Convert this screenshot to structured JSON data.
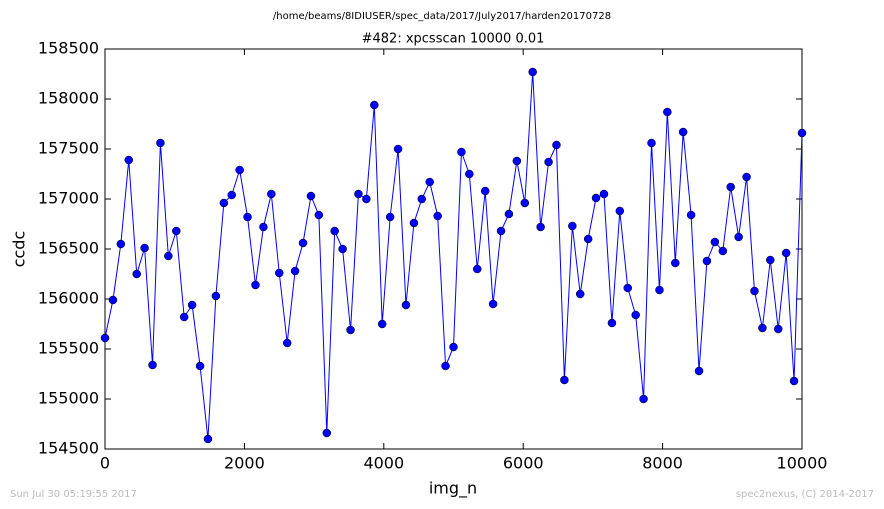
{
  "chart_data": {
    "type": "line",
    "suptitle": "/home/beams/8IDIUSER/spec_data/2017/July2017/harden20170728",
    "title": "#482: xpcsscan 10000 0.01",
    "xlabel": "img_n",
    "ylabel": "ccdc",
    "x": [
      0,
      114,
      227,
      341,
      455,
      568,
      682,
      795,
      909,
      1023,
      1136,
      1250,
      1364,
      1477,
      1591,
      1705,
      1818,
      1932,
      2045,
      2159,
      2273,
      2386,
      2500,
      2614,
      2727,
      2841,
      2955,
      3068,
      3182,
      3295,
      3409,
      3523,
      3636,
      3750,
      3864,
      3977,
      4091,
      4205,
      4318,
      4432,
      4545,
      4659,
      4773,
      4886,
      5000,
      5114,
      5227,
      5341,
      5455,
      5568,
      5682,
      5795,
      5909,
      6023,
      6136,
      6250,
      6364,
      6477,
      6591,
      6705,
      6818,
      6932,
      7045,
      7159,
      7273,
      7386,
      7500,
      7614,
      7727,
      7841,
      7955,
      8068,
      8182,
      8295,
      8409,
      8523,
      8636,
      8750,
      8864,
      8977,
      9091,
      9205,
      9318,
      9432,
      9545,
      9659,
      9773,
      9886,
      10000
    ],
    "series": [
      {
        "color": "#0000ff",
        "values": [
          155610,
          155990,
          156550,
          157390,
          156250,
          156510,
          155340,
          157560,
          156430,
          156680,
          155820,
          155940,
          155330,
          154600,
          156030,
          156960,
          157040,
          157290,
          156820,
          156140,
          156720,
          157050,
          156260,
          155560,
          156280,
          156560,
          157030,
          156840,
          154660,
          156680,
          156500,
          155690,
          157050,
          157000,
          157940,
          155750,
          156820,
          157500,
          155940,
          156760,
          157000,
          157170,
          156830,
          155330,
          155520,
          157470,
          157250,
          156300,
          157080,
          155950,
          156680,
          156850,
          157380,
          156960,
          158270,
          156720,
          157370,
          157540,
          155190,
          156730,
          156050,
          156600,
          157010,
          157050,
          155760,
          156880,
          156110,
          155840,
          155000,
          157560,
          156090,
          157870,
          156360,
          157670,
          156840,
          155280,
          156380,
          156570,
          156480,
          157120,
          156620,
          157220,
          156080,
          155710,
          156390,
          155700,
          156460,
          155180,
          157660
        ]
      }
    ],
    "xlim": [
      0,
      10000
    ],
    "xticks": [
      0,
      2000,
      4000,
      6000,
      8000,
      10000
    ],
    "ylim": [
      154500,
      158500
    ],
    "yticks": [
      154500,
      155000,
      155500,
      156000,
      156500,
      157000,
      157500,
      158000,
      158500
    ]
  },
  "footer": {
    "left": "Sun Jul 30 05:19:55 2017",
    "right": "spec2nexus, (C) 2014-2017"
  }
}
